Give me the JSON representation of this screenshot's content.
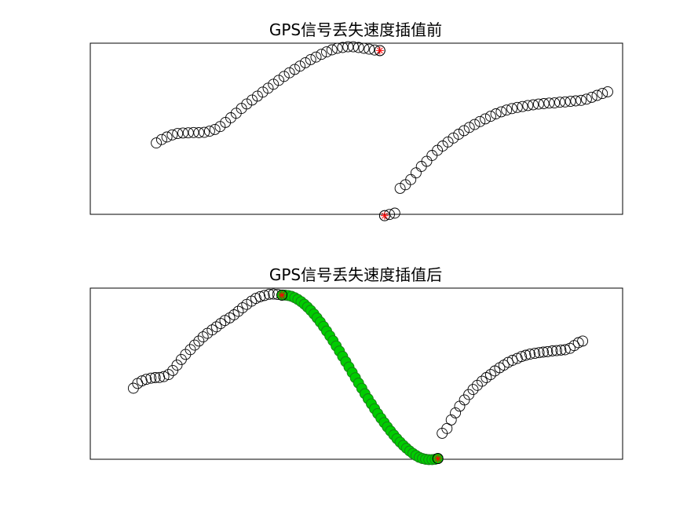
{
  "chart_data": [
    {
      "type": "scatter",
      "title": "GPS信号丢失速度插值前",
      "xlim": [
        0,
        100
      ],
      "ylim": [
        0,
        100
      ],
      "grid": false,
      "colors": {
        "points": "#000000",
        "endpoints": "#ff0000"
      },
      "series": [
        {
          "marker": "circle",
          "x": [
            12.4,
            13.4,
            14.4,
            15.4,
            16.4,
            17.4,
            18.4,
            19.4,
            20.4,
            21.4,
            22.4,
            23.4,
            24.4,
            25.4,
            26.4,
            27.4,
            28.4,
            29.4,
            30.4,
            31.4,
            32.4,
            33.4,
            34.4,
            35.4,
            36.4,
            37.4,
            38.4,
            39.4,
            40.4,
            41.4,
            42.4,
            43.4,
            44.4,
            45.4,
            46.4,
            47.4,
            48.4,
            49.4,
            50.4,
            51.4,
            52.4,
            53.4,
            54.4
          ],
          "y": [
            41.7,
            43.7,
            45.2,
            46.4,
            47.2,
            47.5,
            47.6,
            47.8,
            47.7,
            47.9,
            48.6,
            49.6,
            51.3,
            53.7,
            56.4,
            59.1,
            61.9,
            64.5,
            66.8,
            69.1,
            71.4,
            73.7,
            76.0,
            78.3,
            80.6,
            82.7,
            84.7,
            86.6,
            88.6,
            90.4,
            91.9,
            93.5,
            94.9,
            96.1,
            97.0,
            97.5,
            97.9,
            97.9,
            97.5,
            97.0,
            96.5,
            96.0,
            95.7
          ]
        },
        {
          "marker": "circle",
          "x": [
            55.3,
            56.2,
            57.2,
            58.2,
            59.2,
            60.2,
            61.2,
            62.2,
            63.2,
            64.2,
            65.2,
            66.2,
            67.2,
            68.2,
            69.2,
            70.2,
            71.2,
            72.2,
            73.2,
            74.2,
            75.2,
            76.2,
            77.2,
            78.2,
            79.2,
            80.2,
            81.2,
            82.2,
            83.2,
            84.2,
            85.2,
            86.2,
            87.2,
            88.2,
            89.2,
            90.2,
            91.2,
            92.2,
            93.2,
            94.2,
            95.2,
            96.2,
            97.2
          ],
          "y": [
            -0.8,
            -0.1,
            0.7,
            15.2,
            17.3,
            20.3,
            24.2,
            28.0,
            31.0,
            34.4,
            37.4,
            39.9,
            42.3,
            44.6,
            46.8,
            48.9,
            50.8,
            52.5,
            54.2,
            55.8,
            57.3,
            58.7,
            59.9,
            60.9,
            61.8,
            62.5,
            63.0,
            63.6,
            64.0,
            64.4,
            64.7,
            65.0,
            65.1,
            65.5,
            65.7,
            66.0,
            66.3,
            66.6,
            67.3,
            68.4,
            69.5,
            70.6,
            71.6
          ]
        },
        {
          "marker": "asterisk",
          "color": "#ff0000",
          "x": [
            54.4,
            55.3
          ],
          "y": [
            95.7,
            -0.8
          ]
        }
      ]
    },
    {
      "type": "scatter",
      "title": "GPS信号丢失速度插值后",
      "xlim": [
        0,
        100
      ],
      "ylim": [
        0,
        100
      ],
      "grid": false,
      "colors": {
        "points": "#000000",
        "interpolated": "#00cc00",
        "endpoints": "#ff0000"
      },
      "series": [
        {
          "marker": "circle",
          "x": [
            8.1,
            8.9,
            9.7,
            10.5,
            11.4,
            12.2,
            13.0,
            13.8,
            14.7,
            15.5,
            16.3,
            17.1,
            17.9,
            18.8,
            19.6,
            20.4,
            21.2,
            22.0,
            22.9,
            23.7,
            24.5,
            25.3,
            26.2,
            27.0,
            27.8,
            28.6,
            29.4,
            30.3,
            31.1,
            31.9,
            32.7,
            33.6,
            34.4,
            35.2,
            36.0
          ],
          "y": [
            41.5,
            44.3,
            45.8,
            46.7,
            47.4,
            47.7,
            47.8,
            48.3,
            49.5,
            51.9,
            55.0,
            58.3,
            61.3,
            64.1,
            66.7,
            69.1,
            71.5,
            73.6,
            75.6,
            77.4,
            79.3,
            81.1,
            82.6,
            84.4,
            86.4,
            88.5,
            90.5,
            92.4,
            94.0,
            95.0,
            95.7,
            96.4,
            96.5,
            96.3,
            95.9
          ]
        },
        {
          "name": "",
          "marker": "circle",
          "color": "#00cc00",
          "x": [
            36.0,
            36.6,
            37.2,
            37.8,
            38.4,
            39.0,
            39.6,
            40.2,
            40.8,
            41.4,
            42.0,
            42.6,
            43.2,
            43.8,
            44.4,
            45.0,
            45.6,
            46.2,
            46.8,
            47.4,
            48.0,
            48.6,
            49.2,
            49.8,
            50.4,
            51.0,
            51.6,
            52.2,
            52.8,
            53.4,
            54.0,
            54.6,
            55.2,
            55.8,
            56.4,
            57.0,
            57.6,
            58.2,
            58.8,
            59.4,
            60.0,
            60.6,
            61.2,
            61.8,
            62.4,
            63.0,
            63.6,
            64.2,
            64.8,
            65.3
          ],
          "y": [
            95.9,
            95.9,
            95.7,
            95.2,
            94.4,
            93.4,
            92.1,
            90.6,
            88.9,
            87.0,
            84.9,
            82.6,
            80.2,
            77.6,
            74.9,
            72.1,
            69.2,
            66.2,
            63.2,
            60.1,
            57.0,
            53.9,
            50.7,
            47.6,
            44.5,
            41.4,
            38.3,
            35.3,
            32.4,
            29.5,
            26.7,
            24.0,
            21.4,
            18.9,
            16.5,
            14.2,
            12.0,
            10.0,
            8.1,
            6.4,
            4.8,
            3.4,
            2.2,
            1.1,
            0.4,
            0.0,
            -0.2,
            -0.2,
            0.0,
            0.4
          ]
        },
        {
          "marker": "circle",
          "x": [
            65.3,
            66.1,
            67.0,
            67.8,
            68.6,
            69.4,
            70.3,
            71.1,
            71.9,
            72.7,
            73.6,
            74.4,
            75.2,
            76.0,
            76.9,
            77.7,
            78.5,
            79.3,
            80.2,
            81.0,
            81.8,
            82.6,
            83.5,
            84.3,
            85.1,
            85.9,
            86.8,
            87.6,
            88.4,
            89.2,
            90.1,
            90.9,
            91.7,
            92.5
          ],
          "y": [
            0.4,
            15.2,
            18.0,
            23.0,
            27.1,
            31.0,
            34.7,
            37.8,
            40.8,
            43.2,
            45.6,
            47.7,
            49.5,
            51.6,
            53.5,
            55.0,
            56.6,
            57.8,
            58.9,
            60.0,
            60.8,
            61.4,
            61.9,
            62.3,
            62.6,
            62.9,
            63.3,
            63.5,
            63.8,
            64.0,
            64.8,
            66.4,
            68.1,
            69.1
          ]
        },
        {
          "marker": "asterisk",
          "color": "#ff0000",
          "x": [
            36.0,
            65.3
          ],
          "y": [
            95.9,
            0.4
          ]
        }
      ]
    }
  ]
}
